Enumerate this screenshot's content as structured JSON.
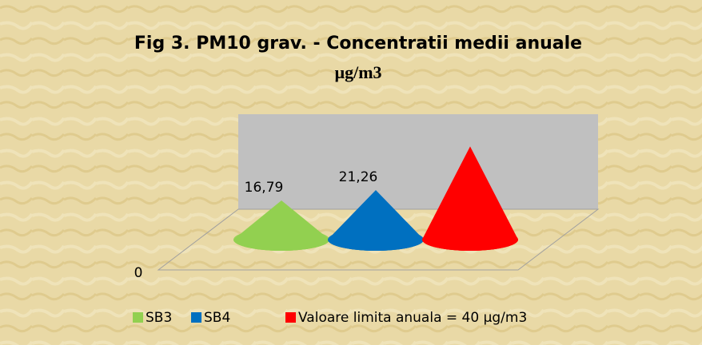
{
  "chart_data": {
    "type": "cone3d",
    "title": "Fig 3. PM10 grav.  - Concentratii medii anuale",
    "subtitle": "µg/m3",
    "series": [
      {
        "name": "SB3",
        "color": "#92d050",
        "values": [
          16.79
        ],
        "value_labels": [
          "16,79"
        ]
      },
      {
        "name": "SB4",
        "color": "#0070c0",
        "values": [
          21.26
        ],
        "value_labels": [
          "21,26"
        ]
      },
      {
        "name": "Valoare limita anuala = 40 µg/m3",
        "color": "#ff0000",
        "values": [
          40
        ]
      }
    ],
    "ylim": [
      0,
      45
    ],
    "yticks": [
      0
    ],
    "legend": "bottom"
  }
}
